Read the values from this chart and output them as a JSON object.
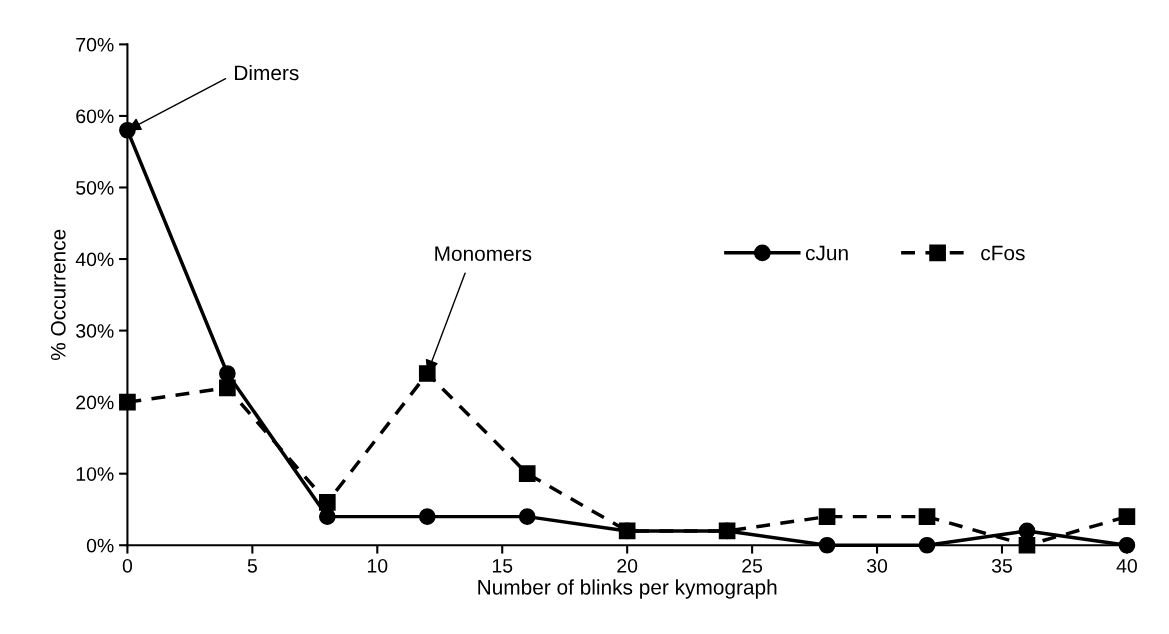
{
  "chart_data": {
    "type": "line",
    "xlabel": "Number of blinks per kymograph",
    "ylabel": "% Occurrence",
    "x": [
      0,
      4,
      8,
      12,
      16,
      20,
      24,
      28,
      32,
      36,
      40
    ],
    "series": [
      {
        "name": "cJun",
        "color": "#000000",
        "marker": "circle",
        "line_style": "solid",
        "values": [
          58,
          24,
          4,
          4,
          4,
          2,
          2,
          0,
          0,
          2,
          0
        ]
      },
      {
        "name": "cFos",
        "color": "#000000",
        "marker": "square",
        "line_style": "dashed",
        "values": [
          20,
          22,
          6,
          24,
          10,
          2,
          2,
          4,
          4,
          0,
          4
        ]
      }
    ],
    "xlim": [
      0,
      40
    ],
    "xticks": [
      0,
      5,
      10,
      15,
      20,
      25,
      30,
      35,
      40
    ],
    "ylim": [
      0,
      70
    ],
    "yticks": [
      {
        "value": 0,
        "label": "0%"
      },
      {
        "value": 10,
        "label": "10%"
      },
      {
        "value": 20,
        "label": "20%"
      },
      {
        "value": 30,
        "label": "30%"
      },
      {
        "value": 40,
        "label": "40%"
      },
      {
        "value": 50,
        "label": "50%"
      },
      {
        "value": 60,
        "label": "60%"
      },
      {
        "value": 70,
        "label": "70%"
      }
    ],
    "annotations": [
      {
        "text": "Dimers",
        "x": 0,
        "y": 58
      },
      {
        "text": "Monomers",
        "x": 12,
        "y": 24
      }
    ],
    "grid": false,
    "legend": "right"
  }
}
